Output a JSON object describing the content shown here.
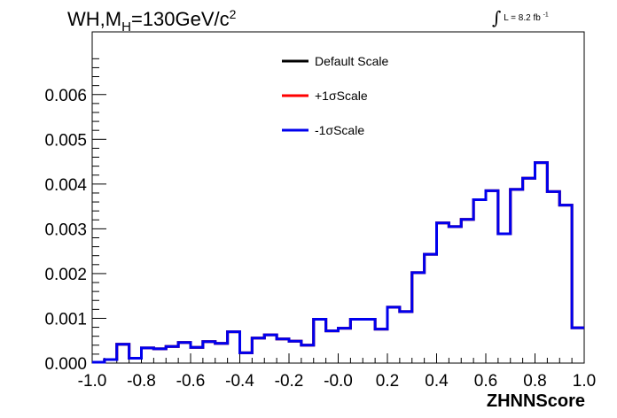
{
  "title": {
    "main": "WH,M",
    "sub": "H",
    "rest": "=130GeV/c",
    "sup": "2"
  },
  "lumi": {
    "integral": "∫",
    "text": "L = 8.2 fb",
    "sup": "-1"
  },
  "chart_data": {
    "type": "line",
    "title": "WH,MH=130GeV/c 2",
    "xlabel": "ZHNNScore",
    "ylabel": "",
    "xlim": [
      -1.0,
      1.0
    ],
    "ylim": [
      0,
      0.0074
    ],
    "xticks": [
      "-1.0",
      "-0.8",
      "-0.6",
      "-0.4",
      "-0.2",
      "-0.0",
      "0.2",
      "0.4",
      "0.6",
      "0.8",
      "1.0"
    ],
    "yticks": [
      "0.000",
      "0.001",
      "0.002",
      "0.003",
      "0.004",
      "0.005",
      "0.006"
    ],
    "bin_edges": [
      -1.0,
      -0.95,
      -0.9,
      -0.85,
      -0.8,
      -0.75,
      -0.7,
      -0.65,
      -0.6,
      -0.55,
      -0.5,
      -0.45,
      -0.4,
      -0.35,
      -0.3,
      -0.25,
      -0.2,
      -0.15,
      -0.1,
      -0.05,
      0.0,
      0.05,
      0.1,
      0.15,
      0.2,
      0.25,
      0.3,
      0.35,
      0.4,
      0.45,
      0.5,
      0.55,
      0.6,
      0.65,
      0.7,
      0.75,
      0.8,
      0.85,
      0.9,
      0.95,
      1.0
    ],
    "legend_position": "top-center",
    "series": [
      {
        "name": "Default Scale",
        "color": "#000000",
        "values": [
          2e-05,
          8e-05,
          0.00042,
          0.00011,
          0.00034,
          0.00032,
          0.00037,
          0.00046,
          0.00035,
          0.00048,
          0.00044,
          0.0007,
          0.00023,
          0.00056,
          0.00063,
          0.00054,
          0.00049,
          0.0004,
          0.00098,
          0.00072,
          0.00078,
          0.00098,
          0.00098,
          0.00076,
          0.00125,
          0.00115,
          0.00202,
          0.00243,
          0.00313,
          0.00305,
          0.00321,
          0.00365,
          0.00385,
          0.00289,
          0.00388,
          0.00413,
          0.00448,
          0.00383,
          0.00353,
          0.00079
        ]
      },
      {
        "name": "+1σScale",
        "color": "#ff0000",
        "values": [
          2e-05,
          8e-05,
          0.00042,
          0.00011,
          0.00034,
          0.00032,
          0.00037,
          0.00046,
          0.00035,
          0.00048,
          0.00044,
          0.0007,
          0.00023,
          0.00056,
          0.00063,
          0.00054,
          0.00049,
          0.0004,
          0.00098,
          0.00072,
          0.00078,
          0.00098,
          0.00098,
          0.00076,
          0.00125,
          0.00115,
          0.00202,
          0.00243,
          0.00313,
          0.00305,
          0.00321,
          0.00365,
          0.00385,
          0.00289,
          0.00388,
          0.00413,
          0.00448,
          0.00383,
          0.00353,
          0.00079
        ]
      },
      {
        "name": "-1σScale",
        "color": "#0000ee",
        "values": [
          2e-05,
          8e-05,
          0.00042,
          0.00011,
          0.00034,
          0.00032,
          0.00037,
          0.00046,
          0.00035,
          0.00048,
          0.00044,
          0.0007,
          0.00023,
          0.00056,
          0.00063,
          0.00054,
          0.00049,
          0.0004,
          0.00098,
          0.00072,
          0.00078,
          0.00098,
          0.00098,
          0.00076,
          0.00125,
          0.00115,
          0.00202,
          0.00243,
          0.00313,
          0.00305,
          0.00321,
          0.00365,
          0.00385,
          0.00289,
          0.00388,
          0.00413,
          0.00448,
          0.00383,
          0.00353,
          0.00079
        ]
      }
    ]
  }
}
